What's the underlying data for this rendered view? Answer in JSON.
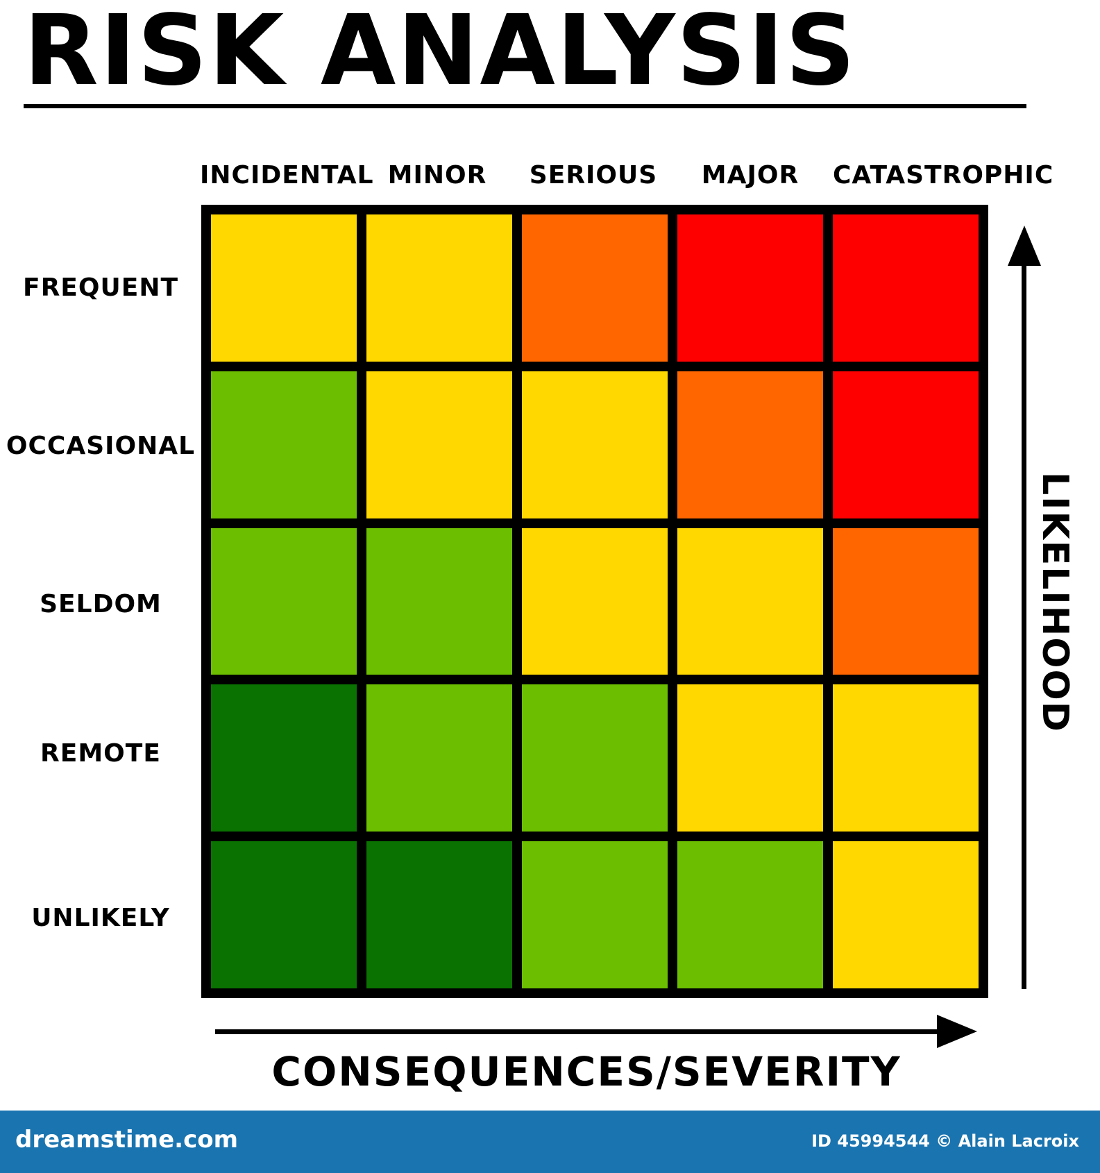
{
  "title": "RISK ANALYSIS",
  "columns": [
    "INCIDENTAL",
    "MINOR",
    "SERIOUS",
    "MAJOR",
    "CATASTROPHIC"
  ],
  "rows": [
    "FREQUENT",
    "OCCASIONAL",
    "SELDOM",
    "REMOTE",
    "UNLIKELY"
  ],
  "x_axis_label": "CONSEQUENCES/SEVERITY",
  "y_axis_label": "LIKELIHOOD",
  "colors": {
    "red": "#ff0000",
    "orange": "#ff6600",
    "yellow": "#ffd800",
    "light_green": "#6cbf00",
    "dark_green": "#0a7200"
  },
  "matrix": [
    [
      "yellow",
      "yellow",
      "orange",
      "red",
      "red"
    ],
    [
      "light_green",
      "yellow",
      "yellow",
      "orange",
      "red"
    ],
    [
      "light_green",
      "light_green",
      "yellow",
      "yellow",
      "orange"
    ],
    [
      "dark_green",
      "light_green",
      "light_green",
      "yellow",
      "yellow"
    ],
    [
      "dark_green",
      "dark_green",
      "light_green",
      "light_green",
      "yellow"
    ]
  ],
  "footer": {
    "site": "dreamstime.com",
    "credit": "ID 45994544 © Alain Lacroix"
  }
}
